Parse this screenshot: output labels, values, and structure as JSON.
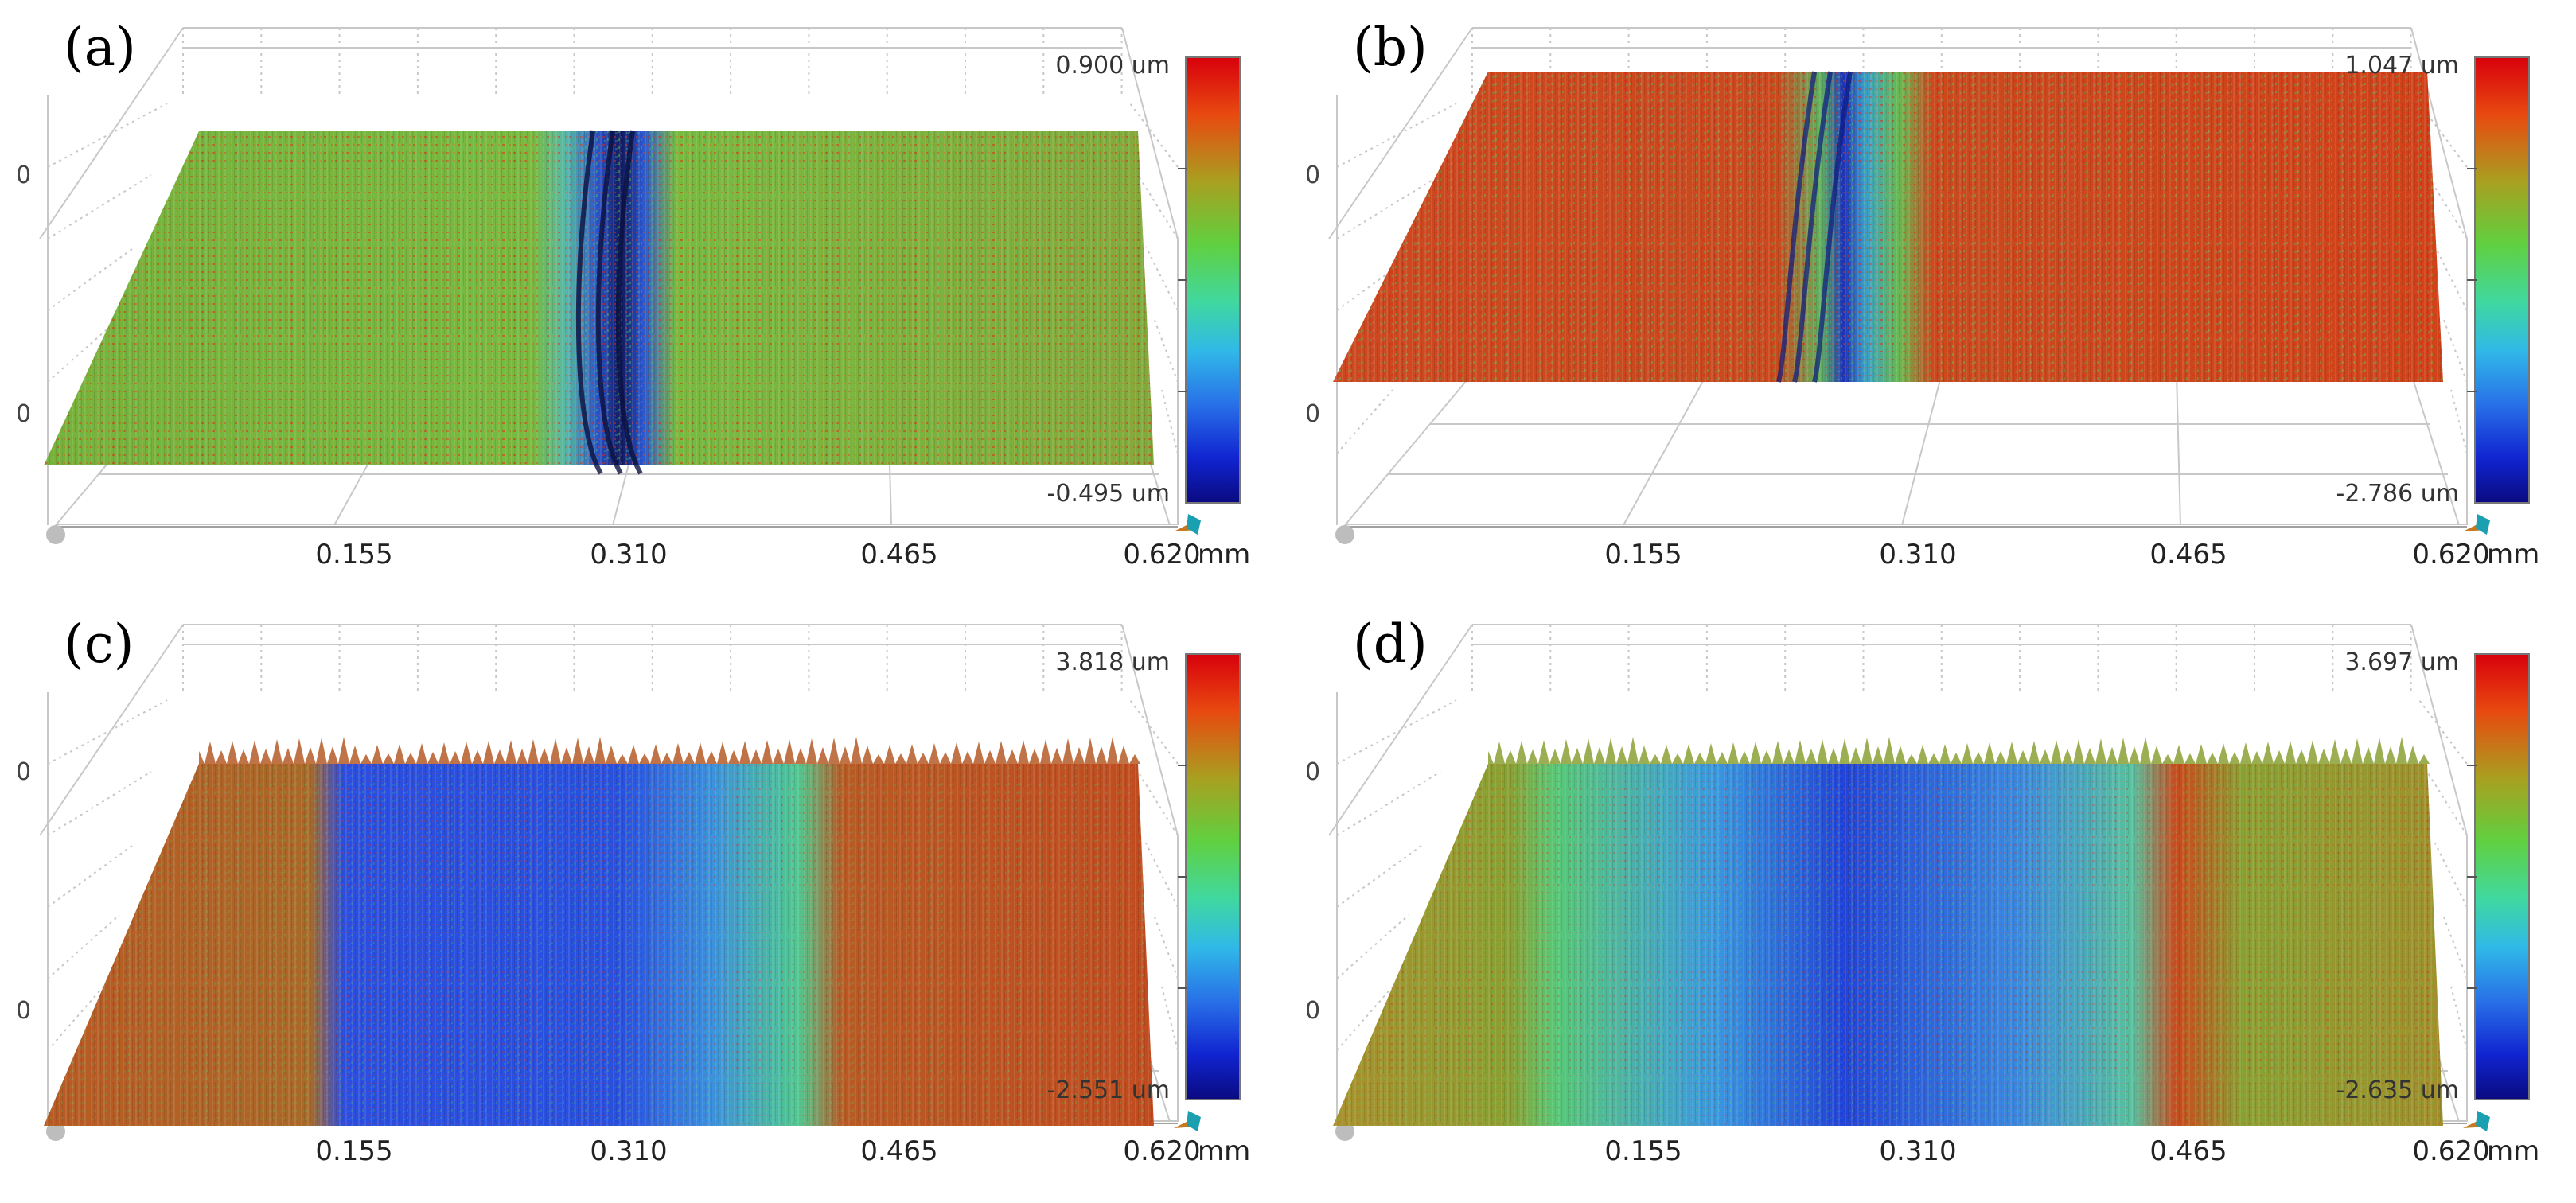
{
  "figure": {
    "x_unit": "mm",
    "z_unit": "um",
    "x_ticks": [
      "0.155",
      "0.310",
      "0.465",
      "0.620"
    ],
    "side_tick": "0"
  },
  "panels": [
    {
      "label": "(a)",
      "max_label": "0.900 um",
      "min_label": "-0.495 um",
      "max_value": 0.9,
      "min_value": -0.495
    },
    {
      "label": "(b)",
      "max_label": "1.047 um",
      "min_label": "-2.786 um",
      "max_value": 1.047,
      "min_value": -2.786
    },
    {
      "label": "(c)",
      "max_label": "3.818 um",
      "min_label": "-2.551 um",
      "max_value": 3.818,
      "min_value": -2.551
    },
    {
      "label": "(d)",
      "max_label": "3.697 um",
      "min_label": "-2.635 um",
      "max_value": 3.697,
      "min_value": -2.635
    }
  ],
  "colors": {
    "map_high": "#e81810",
    "map_mid": "#58c85a",
    "map_low": "#141ca0",
    "track_mid": "#2e5ae0",
    "grid": "#c8c8c8"
  }
}
